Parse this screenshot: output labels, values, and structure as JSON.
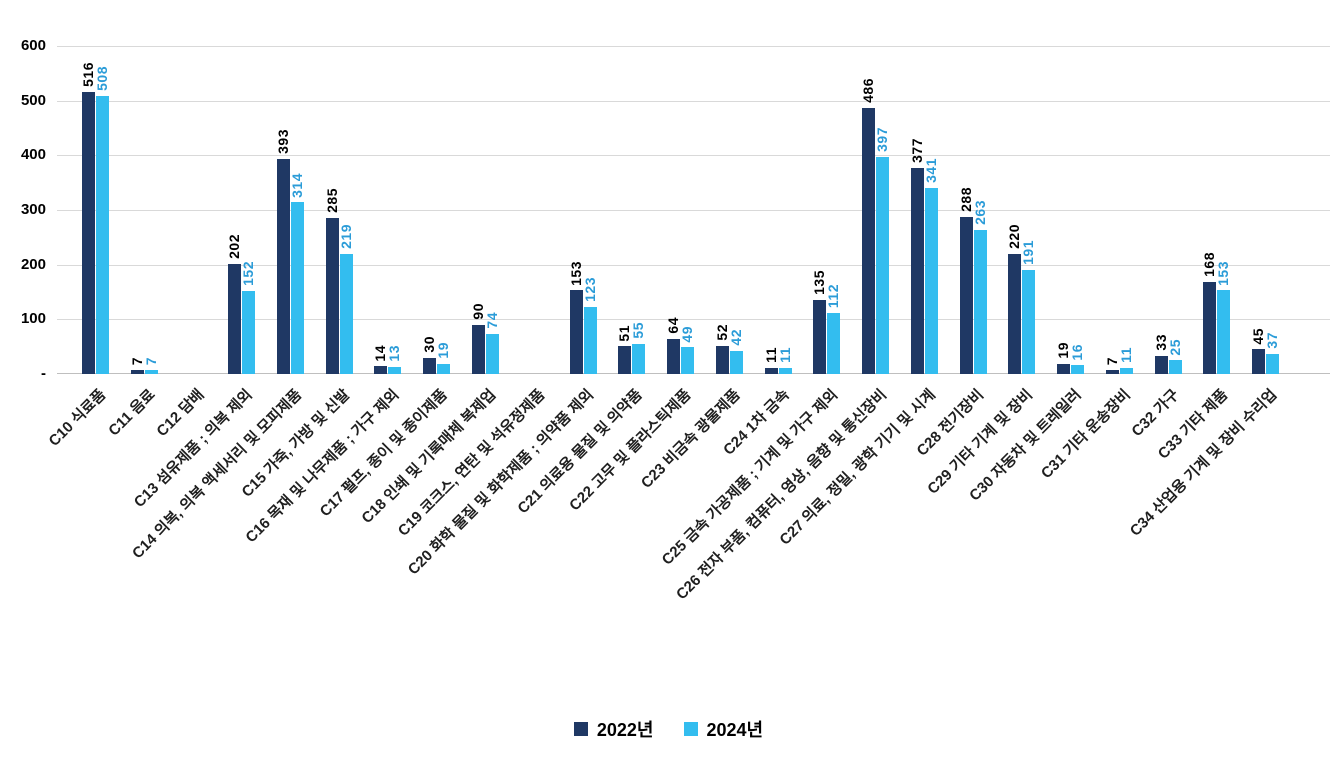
{
  "chart_data": {
    "type": "bar",
    "title": "",
    "categories": [
      "C10 식료품",
      "C11 음료",
      "C12 담배",
      "C13 섬유제품 ; 의복 제외",
      "C14 의복, 의복 액세서리 및 모피제품",
      "C15 가죽, 가방 및 신발",
      "C16 목재 및 나무제품 ; 가구 제외",
      "C17 펄프, 종이 및 종이제품",
      "C18 인쇄 및 기록매체 복제업",
      "C19 코크스, 연탄 및 석유정제품",
      "C20 화학 물질 및 화학제품 ; 의약품 제외",
      "C21 의료용 물질 및 의약품",
      "C22 고무 및 플라스틱제품",
      "C23 비금속 광물제품",
      "C24 1차 금속",
      "C25 금속 가공제품 ; 기계 및 가구 제외",
      "C26 전자 부품, 컴퓨터, 영상, 음향 및 통신장비",
      "C27 의료, 정밀, 광학 기기 및 시계",
      "C28 전기장비",
      "C29 기타 기계 및 장비",
      "C30 자동차 및 트레일러",
      "C31 기타 운송장비",
      "C32 가구",
      "C33 기타 제품",
      "C34 산업용 기계 및 장비 수리업"
    ],
    "series": [
      {
        "name": "2022년",
        "color": "#1F3864",
        "label_color": "#000000",
        "values": [
          516,
          7,
          null,
          202,
          393,
          285,
          14,
          30,
          90,
          null,
          153,
          51,
          64,
          52,
          11,
          135,
          486,
          377,
          288,
          220,
          19,
          7,
          33,
          168,
          45
        ]
      },
      {
        "name": "2024년",
        "color": "#33BDEF",
        "label_color": "#2B9CD8",
        "values": [
          508,
          7,
          null,
          152,
          314,
          219,
          13,
          19,
          74,
          null,
          123,
          55,
          49,
          42,
          11,
          112,
          397,
          341,
          263,
          191,
          16,
          11,
          25,
          153,
          37
        ]
      }
    ],
    "ylim": [
      0,
      600
    ],
    "ytick_interval": 100,
    "yticks": [
      {
        "value": 0,
        "label": "-"
      },
      {
        "value": 100,
        "label": "100"
      },
      {
        "value": 200,
        "label": "200"
      },
      {
        "value": 300,
        "label": "300"
      },
      {
        "value": 400,
        "label": "400"
      },
      {
        "value": 500,
        "label": "500"
      },
      {
        "value": 600,
        "label": "600"
      }
    ],
    "grid": true,
    "grid_color": "#D9D9D9",
    "baseline_color": "#BFBFBF",
    "background": "#FFFFFF",
    "legend_position": "bottom",
    "legend": [
      "2022년",
      "2024년"
    ]
  }
}
